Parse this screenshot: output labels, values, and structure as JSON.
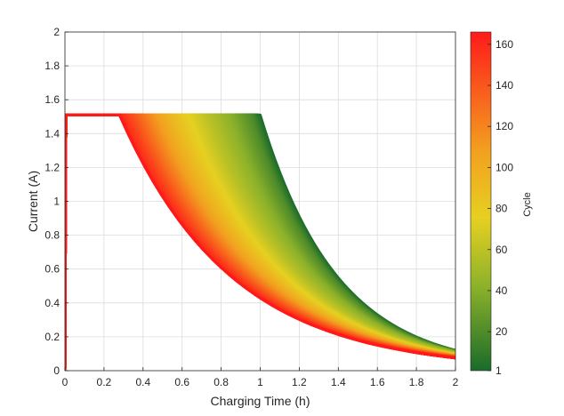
{
  "chart_data": {
    "type": "line",
    "title": "",
    "xlabel": "Charging Time (h)",
    "ylabel": "Current (A)",
    "xlim": [
      0,
      2
    ],
    "ylim": [
      0,
      2
    ],
    "x_ticks": [
      "0",
      "0.2",
      "0.4",
      "0.6",
      "0.8",
      "1",
      "1.2",
      "1.4",
      "1.6",
      "1.8",
      "2"
    ],
    "y_ticks": [
      "0",
      "0.2",
      "0.4",
      "0.6",
      "0.8",
      "1",
      "1.2",
      "1.4",
      "1.6",
      "1.8",
      "2"
    ],
    "grid": true,
    "colorbar": {
      "label": "Cycle",
      "range": [
        1,
        166
      ],
      "ticks": [
        "1",
        "20",
        "40",
        "60",
        "80",
        "100",
        "120",
        "140",
        "160"
      ],
      "colors": [
        "#1a6b2a",
        "#8db22a",
        "#e6d021",
        "#f2a020",
        "#ff1a1a"
      ]
    },
    "constant_current": 1.51,
    "series": [
      {
        "cycle": 1,
        "knee_time": 1.0,
        "end_current": 0.12
      },
      {
        "cycle": 20,
        "knee_time": 0.95,
        "end_current": 0.115
      },
      {
        "cycle": 40,
        "knee_time": 0.85,
        "end_current": 0.11
      },
      {
        "cycle": 60,
        "knee_time": 0.72,
        "end_current": 0.1
      },
      {
        "cycle": 80,
        "knee_time": 0.6,
        "end_current": 0.095
      },
      {
        "cycle": 100,
        "knee_time": 0.5,
        "end_current": 0.09
      },
      {
        "cycle": 120,
        "knee_time": 0.42,
        "end_current": 0.085
      },
      {
        "cycle": 140,
        "knee_time": 0.35,
        "end_current": 0.08
      },
      {
        "cycle": 160,
        "knee_time": 0.28,
        "end_current": 0.075
      }
    ]
  }
}
